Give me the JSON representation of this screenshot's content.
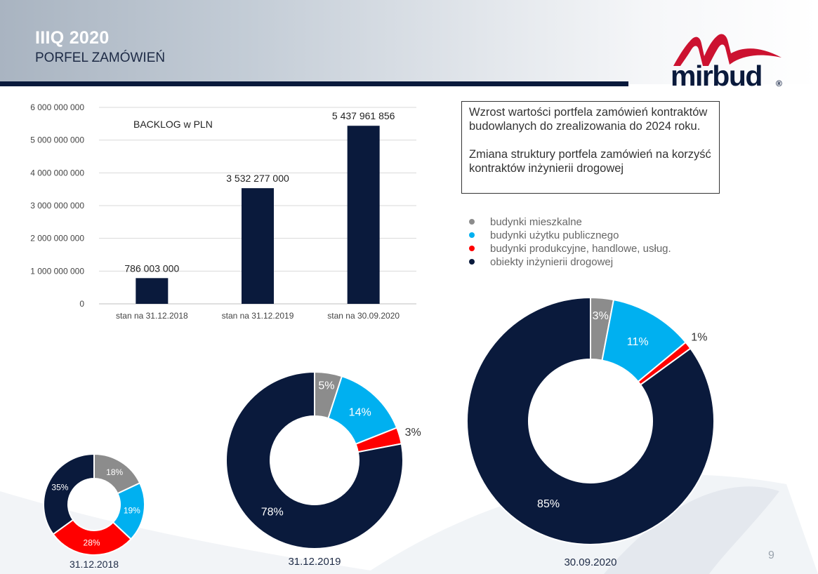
{
  "header": {
    "title": "IIIQ 2020",
    "subtitle": "PORFEL ZAMÓWIEŃ"
  },
  "logo": {
    "text": "mirbud",
    "mark": "®"
  },
  "colors": {
    "navy": "#0a1a3c",
    "gray": "#8c8c8c",
    "cyan": "#00b0f0",
    "red": "#ff0000"
  },
  "info_box": {
    "paragraph1": "Wzrost wartości portfela zamówień kontraktów budowlanych do zrealizowania do 2024 roku.",
    "paragraph2": "Zmiana struktury portfela zamówień na korzyść kontraktów inżynierii drogowej"
  },
  "legend": [
    {
      "label": "budynki mieszkalne",
      "color": "#8c8c8c"
    },
    {
      "label": "budynki użytku publicznego",
      "color": "#00b0f0"
    },
    {
      "label": "budynki produkcyjne, handlowe, usług.",
      "color": "#ff0000"
    },
    {
      "label": "obiekty inżynierii drogowej",
      "color": "#0a1a3c"
    }
  ],
  "page_number": "9",
  "chart_data": [
    {
      "type": "bar",
      "title": "BACKLOG w PLN",
      "categories": [
        "stan na 31.12.2018",
        "stan na 31.12.2019",
        "stan na 30.09.2020"
      ],
      "values": [
        786003000,
        3532277000,
        5437961856
      ],
      "value_labels": [
        "786 003 000",
        "3 532 277 000",
        "5 437 961 856"
      ],
      "ylim": [
        0,
        6000000000
      ],
      "yticks": [
        0,
        1000000000,
        2000000000,
        3000000000,
        4000000000,
        5000000000,
        6000000000
      ],
      "ytick_labels": [
        "0",
        "1 000 000 000",
        "2 000 000 000",
        "3 000 000 000",
        "4 000 000 000",
        "5 000 000 000",
        "6 000 000 000"
      ],
      "grid": true
    },
    {
      "type": "pie",
      "title": "31.12.2018",
      "categories": [
        "budynki mieszkalne",
        "budynki użytku publicznego",
        "budynki produkcyjne, handlowe, usług.",
        "obiekty inżynierii drogowej"
      ],
      "values": [
        18,
        19,
        28,
        35
      ],
      "value_labels": [
        "18%",
        "19%",
        "28%",
        "35%"
      ]
    },
    {
      "type": "pie",
      "title": "31.12.2019",
      "categories": [
        "budynki mieszkalne",
        "budynki użytku publicznego",
        "budynki produkcyjne, handlowe, usług.",
        "obiekty inżynierii drogowej"
      ],
      "values": [
        5,
        14,
        3,
        78
      ],
      "value_labels": [
        "5%",
        "14%",
        "3%",
        "78%"
      ]
    },
    {
      "type": "pie",
      "title": "30.09.2020",
      "categories": [
        "budynki mieszkalne",
        "budynki użytku publicznego",
        "budynki produkcyjne, handlowe, usług.",
        "obiekty inżynierii drogowej"
      ],
      "values": [
        3,
        11,
        1,
        85
      ],
      "value_labels": [
        "3%",
        "11%",
        "1%",
        "85%"
      ]
    }
  ]
}
